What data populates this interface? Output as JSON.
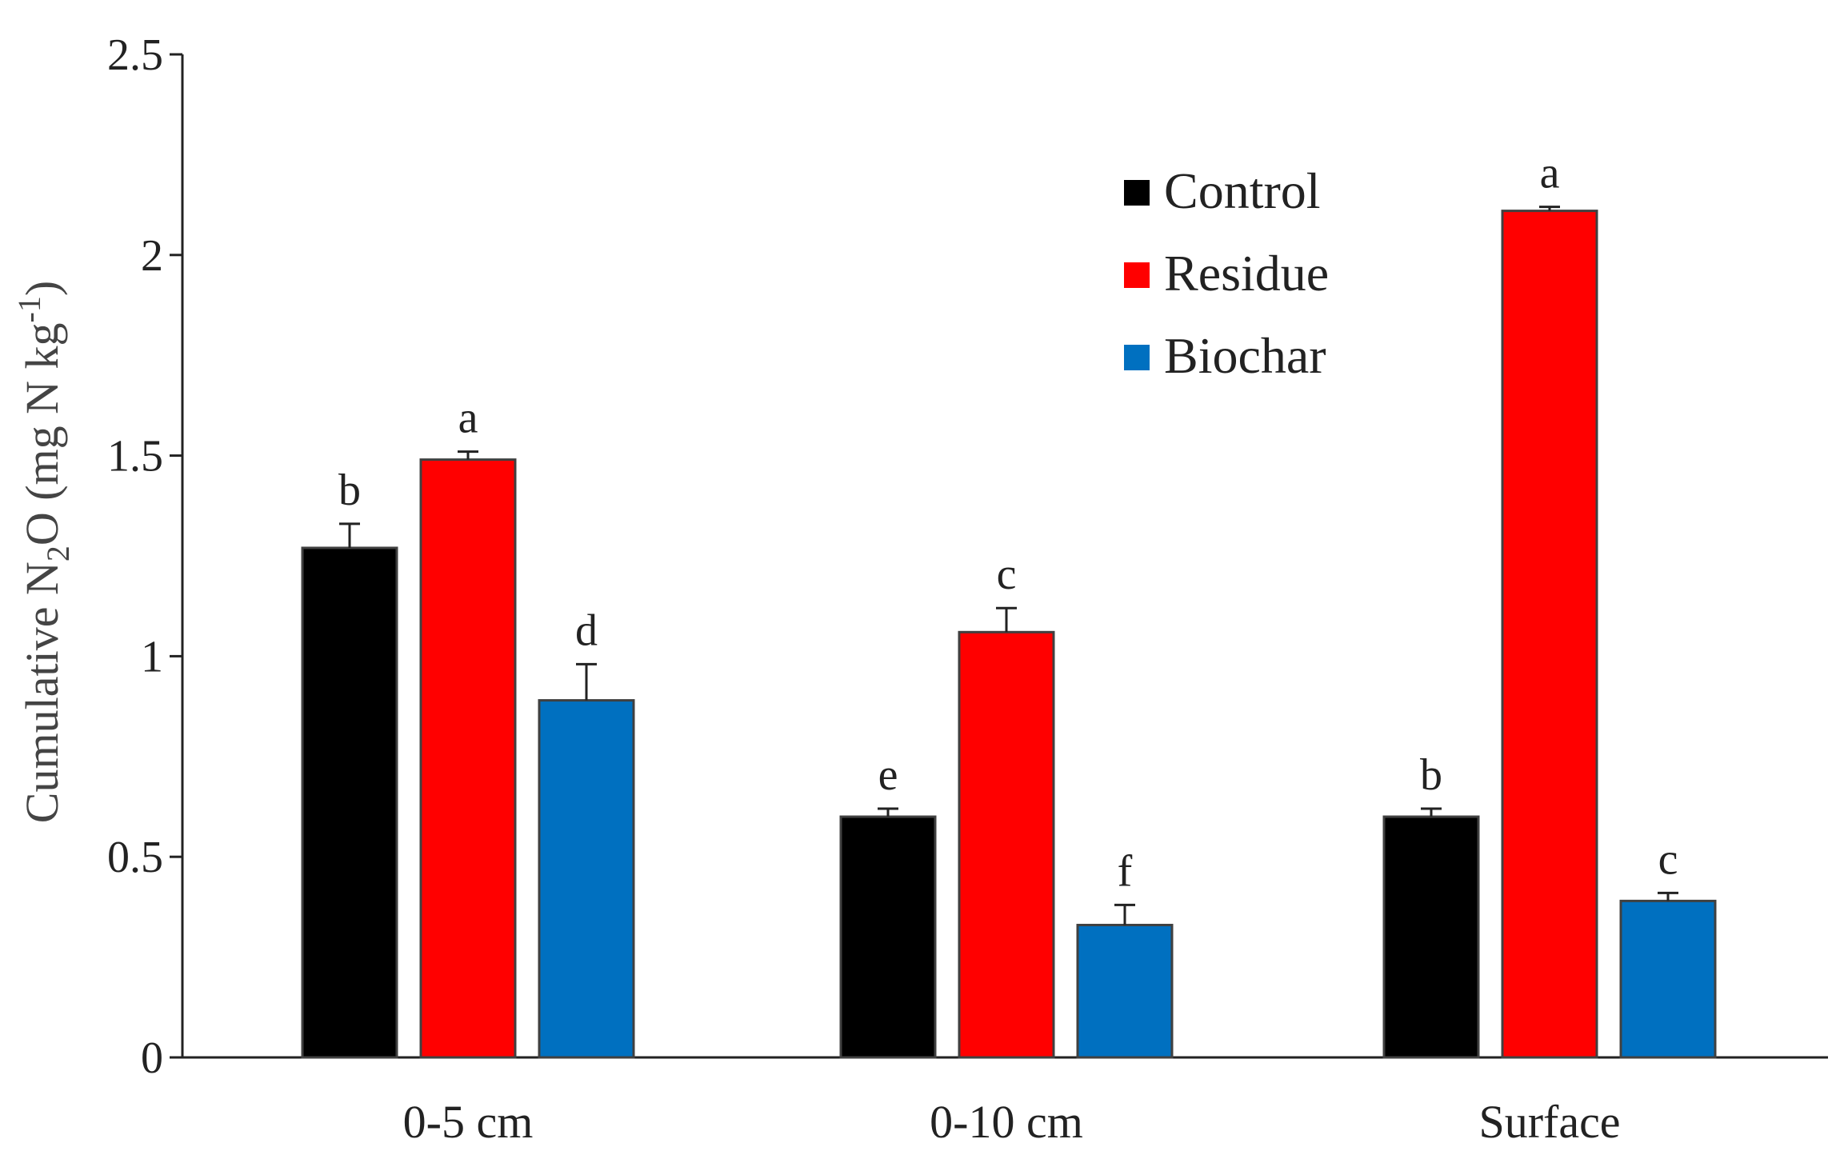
{
  "chart_data": {
    "type": "bar",
    "title": "",
    "xlabel": "",
    "ylabel": {
      "prefix": "Cumulative N",
      "sub": "2",
      "middle": "O (mg N kg",
      "sup": "-1",
      "suffix": ")"
    },
    "ylim": [
      0,
      2.5
    ],
    "yticks": [
      {
        "value": 0,
        "label": "0"
      },
      {
        "value": 0.5,
        "label": "0.5"
      },
      {
        "value": 1,
        "label": "1"
      },
      {
        "value": 1.5,
        "label": "1.5"
      },
      {
        "value": 2,
        "label": "2"
      },
      {
        "value": 2.5,
        "label": "2.5"
      }
    ],
    "categories": [
      "0-5 cm",
      "0-10 cm",
      "Surface"
    ],
    "legend_position": "top-right",
    "series": [
      {
        "name": "Control",
        "color": "#000000",
        "values": [
          1.27,
          0.6,
          0.6
        ],
        "errors": [
          0.06,
          0.02,
          0.02
        ],
        "letters": [
          "b",
          "e",
          "b"
        ]
      },
      {
        "name": "Residue",
        "color": "#ff0000",
        "values": [
          1.49,
          1.06,
          2.11
        ],
        "errors": [
          0.02,
          0.06,
          0.01
        ],
        "letters": [
          "a",
          "c",
          "a"
        ]
      },
      {
        "name": "Biochar",
        "color": "#0070c0",
        "values": [
          0.89,
          0.33,
          0.39
        ],
        "errors": [
          0.09,
          0.05,
          0.02
        ],
        "letters": [
          "d",
          "f",
          "c"
        ]
      }
    ]
  }
}
